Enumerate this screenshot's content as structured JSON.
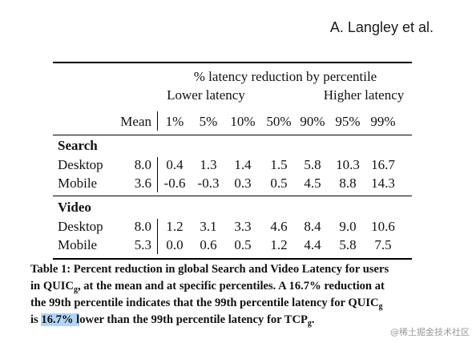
{
  "header": {
    "author": "A. Langley et al."
  },
  "table": {
    "group_header": "% latency reduction by percentile",
    "lower_label": "Lower latency",
    "higher_label": "Higher latency",
    "mean_label": "Mean",
    "percentiles": [
      "1%",
      "5%",
      "10%",
      "50%",
      "90%",
      "95%",
      "99%"
    ],
    "sections": [
      {
        "name": "Search",
        "rows": [
          {
            "label": "Desktop",
            "mean": "8.0",
            "values": [
              "0.4",
              "1.3",
              "1.4",
              "1.5",
              "5.8",
              "10.3",
              "16.7"
            ]
          },
          {
            "label": "Mobile",
            "mean": "3.6",
            "values": [
              "-0.6",
              "-0.3",
              "0.3",
              "0.5",
              "4.5",
              "8.8",
              "14.3"
            ]
          }
        ]
      },
      {
        "name": "Video",
        "rows": [
          {
            "label": "Desktop",
            "mean": "8.0",
            "values": [
              "1.2",
              "3.1",
              "3.3",
              "4.6",
              "8.4",
              "9.0",
              "10.6"
            ]
          },
          {
            "label": "Mobile",
            "mean": "5.3",
            "values": [
              "0.0",
              "0.6",
              "0.5",
              "1.2",
              "4.4",
              "5.8",
              "7.5"
            ]
          }
        ]
      }
    ]
  },
  "caption": {
    "l1": "Table 1: Percent reduction in global Search and Video Latency for users",
    "l2a": "in QUIC",
    "sub": "g",
    "l2b": ", at the mean and at specific percentiles. A 16.7% reduction at",
    "l3a": "the 99th percentile indicates that the 99th percentile latency for QUIC",
    "l4a": "is ",
    "l4hl": "16.7% l",
    "l4b": "ower than the 99th percentile latency for TCP",
    "l4c": "."
  },
  "watermark": "@稀土掘金技术社区"
}
